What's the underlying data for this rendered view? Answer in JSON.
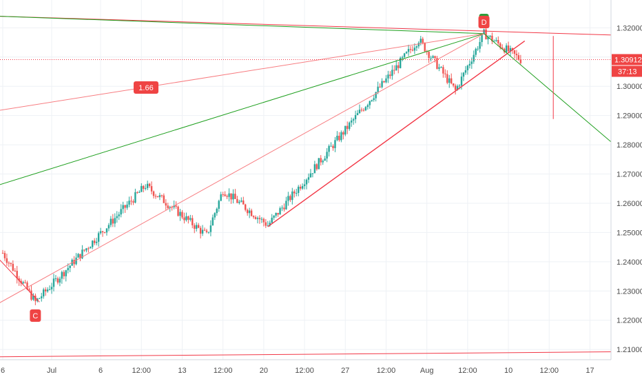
{
  "chart_data": {
    "type": "candlestick",
    "instrument_note": "",
    "ylim": [
      1.2065,
      1.3295
    ],
    "y_ticks": [
      "1.32000",
      "1.31000",
      "1.30000",
      "1.29000",
      "1.28000",
      "1.27000",
      "1.26000",
      "1.25000",
      "1.24000",
      "1.23000",
      "1.22000",
      "1.21000"
    ],
    "x_ticks": [
      {
        "label": "6",
        "idx": 0
      },
      {
        "label": "Jul",
        "idx": 12
      },
      {
        "label": "6",
        "idx": 24
      },
      {
        "label": "12:00",
        "idx": 34
      },
      {
        "label": "13",
        "idx": 44
      },
      {
        "label": "12:00",
        "idx": 54
      },
      {
        "label": "20",
        "idx": 64
      },
      {
        "label": "12:00",
        "idx": 74
      },
      {
        "label": "27",
        "idx": 84
      },
      {
        "label": "12:00",
        "idx": 94
      },
      {
        "label": "Aug",
        "idx": 104
      },
      {
        "label": "12:00",
        "idx": 114
      },
      {
        "label": "10",
        "idx": 124
      },
      {
        "label": "12:00",
        "idx": 134
      },
      {
        "label": "17",
        "idx": 144
      }
    ],
    "last_price": "1.30912",
    "countdown": "37:13",
    "last_price_value": 1.30912,
    "labels": {
      "pattern_c": "C",
      "pattern_d": "D",
      "ratio": "1.66"
    },
    "key_points": [
      {
        "name": "start",
        "idx": 0,
        "price": 1.243
      },
      {
        "name": "C",
        "idx": 8,
        "price": 1.2262
      },
      {
        "name": "swing1",
        "idx": 35,
        "price": 1.266
      },
      {
        "name": "swing-low",
        "idx": 50,
        "price": 1.249
      },
      {
        "name": "swing2",
        "idx": 54,
        "price": 1.2645
      },
      {
        "name": "low-20",
        "idx": 65,
        "price": 1.2525
      },
      {
        "name": "peak-jul31",
        "idx": 102,
        "price": 1.316
      },
      {
        "name": "dip-aug",
        "idx": 111,
        "price": 1.2985
      },
      {
        "name": "D",
        "idx": 118,
        "price": 1.318
      },
      {
        "name": "last",
        "idx": 127,
        "price": 1.3091
      }
    ],
    "lines": [
      {
        "color": "red",
        "from": [
          -2,
          1.324
        ],
        "to": [
          150,
          1.3175
        ]
      },
      {
        "color": "green",
        "from": [
          -2,
          1.324
        ],
        "to": [
          118,
          1.318
        ]
      },
      {
        "color": "red",
        "from": [
          -2,
          1.2915
        ],
        "to": [
          118,
          1.318
        ]
      },
      {
        "color": "green",
        "from": [
          -2,
          1.2658
        ],
        "to": [
          118,
          1.318
        ]
      },
      {
        "color": "red",
        "from": [
          -2,
          1.225
        ],
        "to": [
          118,
          1.318
        ]
      },
      {
        "color": "red",
        "from": [
          65,
          1.252
        ],
        "to": [
          128,
          1.3155
        ]
      },
      {
        "color": "green",
        "from": [
          118,
          1.318
        ],
        "to": [
          150,
          1.28
        ]
      },
      {
        "color": "red",
        "from": [
          -2,
          1.2075
        ],
        "to": [
          150,
          1.2092
        ]
      },
      {
        "color": "red",
        "from": [
          -2,
          1.2425
        ],
        "to": [
          9,
          1.2262
        ]
      },
      {
        "color": "red",
        "from": [
          135,
          1.3172
        ],
        "to": [
          135,
          1.2888
        ]
      }
    ]
  },
  "colors": {
    "up": "#26a69a",
    "down": "#ef5350",
    "line_red": "#f23645",
    "line_red_light": "#f77c80",
    "line_green": "#1b9e1b",
    "grid": "#eef1f5",
    "axis_text": "#4a4a4a",
    "label_red": "#ef4444",
    "label_green": "#2e9e3a"
  }
}
